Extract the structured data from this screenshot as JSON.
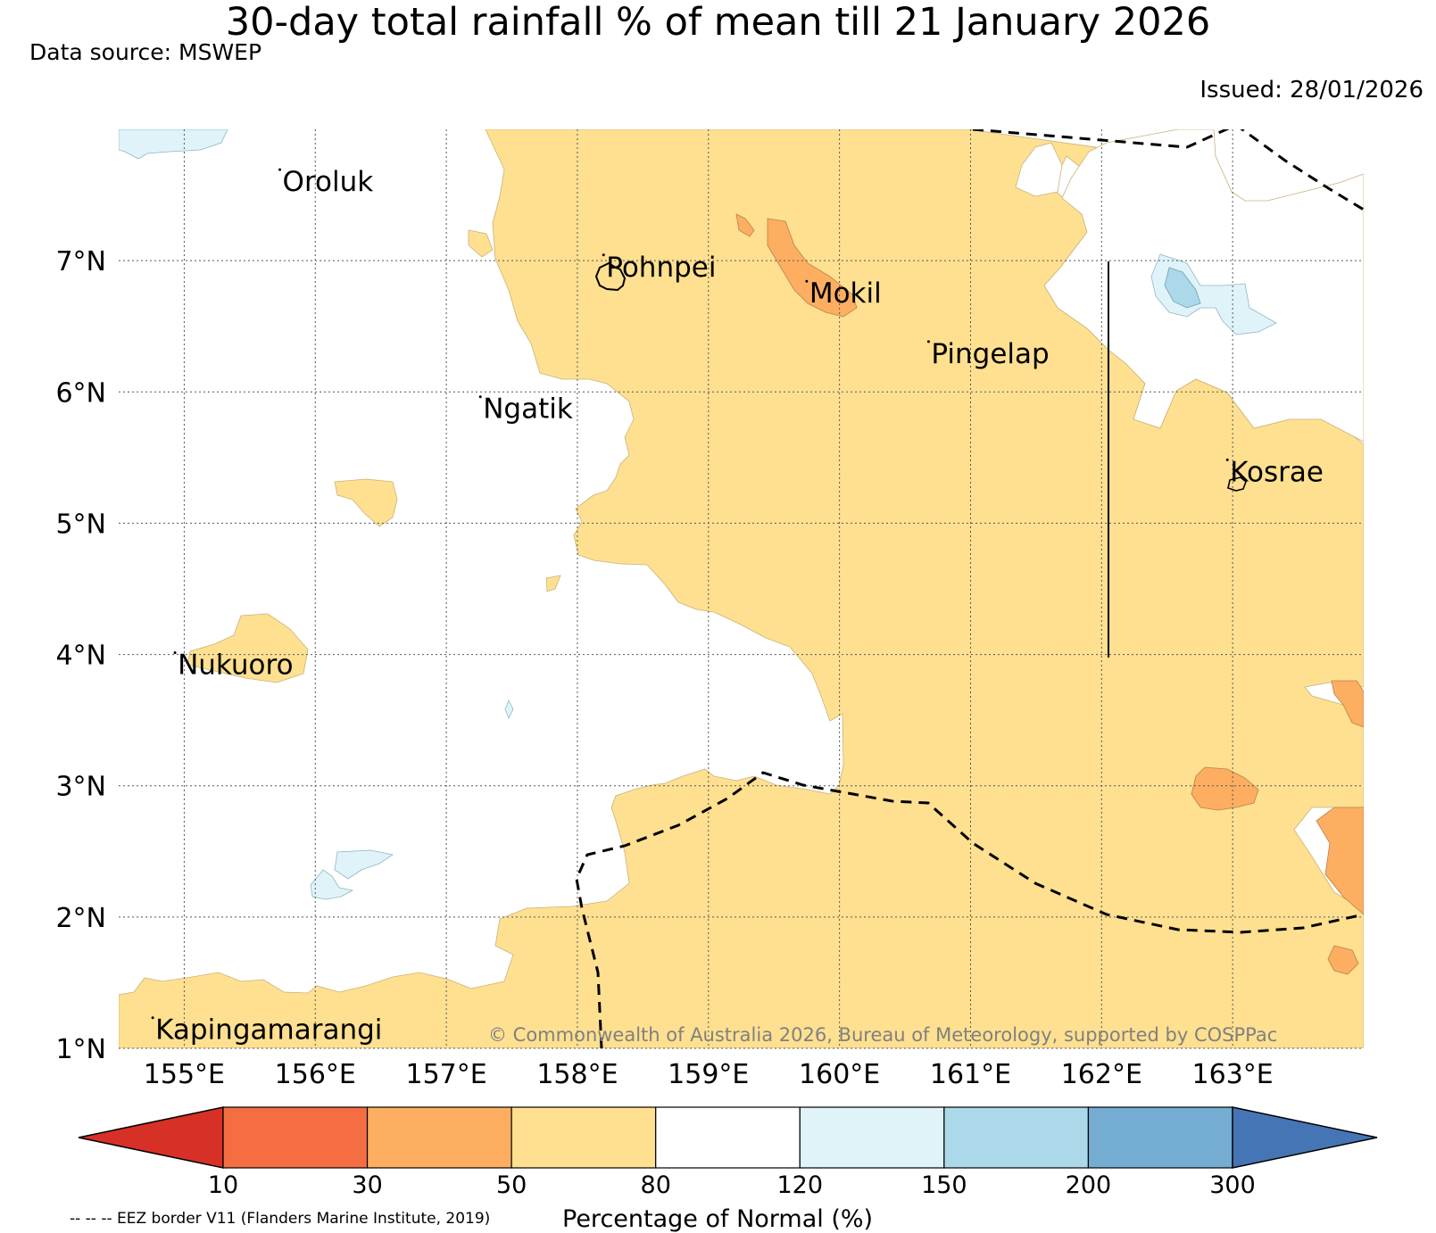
{
  "header": {
    "title": "30-day total rainfall % of mean till 21 January 2026",
    "data_source": "Data source: MSWEP",
    "issued": "Issued: 28/01/2026"
  },
  "map": {
    "lon_range": [
      154.5,
      164.0
    ],
    "lat_range": [
      1.0,
      8.0
    ],
    "lat_ticks": [
      {
        "value": 7,
        "label": "7°N"
      },
      {
        "value": 6,
        "label": "6°N"
      },
      {
        "value": 5,
        "label": "5°N"
      },
      {
        "value": 4,
        "label": "4°N"
      },
      {
        "value": 3,
        "label": "3°N"
      },
      {
        "value": 2,
        "label": "2°N"
      },
      {
        "value": 1,
        "label": "1°N"
      }
    ],
    "lon_ticks": [
      {
        "value": 155,
        "label": "155°E"
      },
      {
        "value": 156,
        "label": "156°E"
      },
      {
        "value": 157,
        "label": "157°E"
      },
      {
        "value": 158,
        "label": "158°E"
      },
      {
        "value": 159,
        "label": "159°E"
      },
      {
        "value": 160,
        "label": "160°E"
      },
      {
        "value": 161,
        "label": "161°E"
      },
      {
        "value": 162,
        "label": "162°E"
      },
      {
        "value": 163,
        "label": "163°E"
      }
    ],
    "places": [
      {
        "name": "Oroluk",
        "lon": 155.75,
        "lat": 7.53
      },
      {
        "name": "Pohnpei",
        "lon": 158.22,
        "lat": 6.88
      },
      {
        "name": "Mokil",
        "lon": 159.77,
        "lat": 6.68
      },
      {
        "name": "Pingelap",
        "lon": 160.7,
        "lat": 6.22
      },
      {
        "name": "Ngatik",
        "lon": 157.28,
        "lat": 5.8
      },
      {
        "name": "Kosrae",
        "lon": 162.98,
        "lat": 5.32
      },
      {
        "name": "Nukuoro",
        "lon": 154.95,
        "lat": 3.85
      },
      {
        "name": "Kapingamarangi",
        "lon": 154.78,
        "lat": 1.07
      }
    ],
    "copyright": "© Commonwealth of Australia 2026, Bureau of Meteorology, supported by COSPPac"
  },
  "legend": {
    "colorbar_title": "Percentage of Normal (%)",
    "eez_note": "-- -- -- EEZ border V11 (Flanders Marine Institute, 2019)",
    "bins": [
      {
        "label": "<10",
        "color": "#d73027"
      },
      {
        "label": "10-30",
        "color": "#f46d43"
      },
      {
        "label": "30-50",
        "color": "#fdae61"
      },
      {
        "label": "50-80",
        "color": "#fee090"
      },
      {
        "label": "80-120",
        "color": "#ffffff"
      },
      {
        "label": "120-150",
        "color": "#e0f3f8"
      },
      {
        "label": "150-200",
        "color": "#abd9e9"
      },
      {
        "label": "200-300",
        "color": "#74add1"
      },
      {
        "label": ">300",
        "color": "#4575b4"
      }
    ],
    "ticks": [
      "10",
      "30",
      "50",
      "80",
      "120",
      "150",
      "200",
      "300"
    ]
  }
}
